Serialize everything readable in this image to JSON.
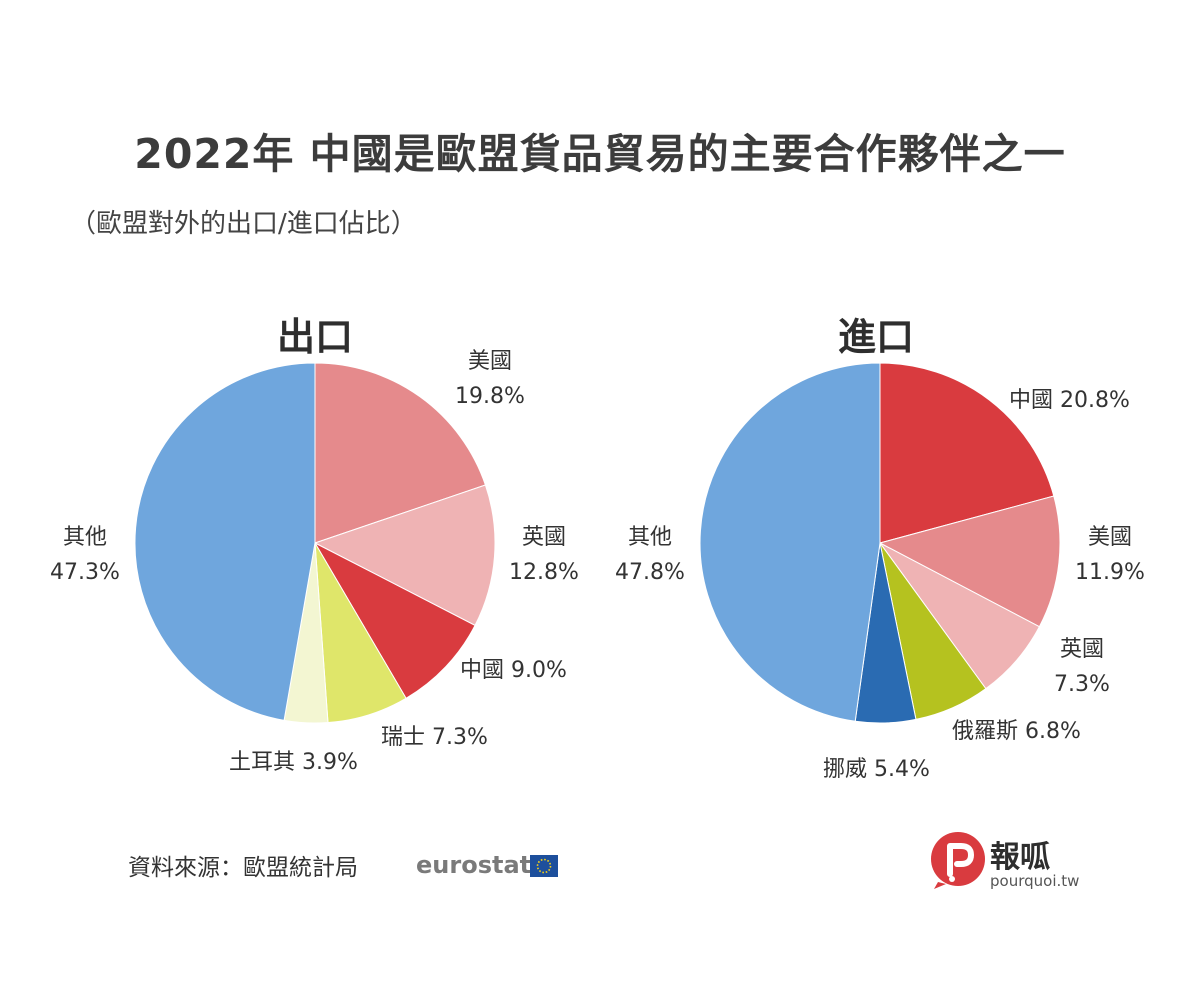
{
  "title": "2022年 中國是歐盟貨品貿易的主要合作夥伴之一",
  "subtitle": "（歐盟對外的出口/進口佔比）",
  "chart_data": [
    {
      "type": "pie",
      "title": "出口",
      "unit": "%",
      "slices": [
        {
          "label": "美國",
          "value": 19.8,
          "color": "#e58a8c"
        },
        {
          "label": "英國",
          "value": 12.8,
          "color": "#efb3b4"
        },
        {
          "label": "中國",
          "value": 9.0,
          "color": "#d93b3f"
        },
        {
          "label": "瑞士",
          "value": 7.3,
          "color": "#dfe66a"
        },
        {
          "label": "土耳其",
          "value": 3.9,
          "color": "#f3f6d2"
        },
        {
          "label": "其他",
          "value": 47.3,
          "color": "#6fa6dd"
        }
      ]
    },
    {
      "type": "pie",
      "title": "進口",
      "unit": "%",
      "slices": [
        {
          "label": "中國",
          "value": 20.8,
          "color": "#d93b3f"
        },
        {
          "label": "美國",
          "value": 11.9,
          "color": "#e58a8c"
        },
        {
          "label": "英國",
          "value": 7.3,
          "color": "#efb3b4"
        },
        {
          "label": "俄羅斯",
          "value": 6.8,
          "color": "#b5c21f"
        },
        {
          "label": "挪威",
          "value": 5.4,
          "color": "#2a6bb2"
        },
        {
          "label": "其他",
          "value": 47.8,
          "color": "#6fa6dd"
        }
      ]
    }
  ],
  "source": {
    "label": "資料來源：歐盟統計局",
    "brand": "eurostat"
  },
  "logo": {
    "name": "報呱",
    "url": "pourquoi.tw",
    "color": "#d93b3f"
  }
}
